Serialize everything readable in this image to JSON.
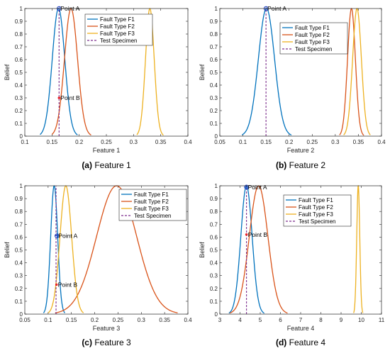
{
  "colors": {
    "F1": "#0072BD",
    "F2": "#D95319",
    "F3": "#EDB120",
    "test": "#7E2F8E",
    "pointA": "#1f3fbf",
    "pointB": "#e8262b"
  },
  "chart_data": [
    {
      "type": "line",
      "caption_letter": "(a)",
      "caption_text": " Feature 1",
      "xlabel": "Feature 1",
      "ylabel": "Belief",
      "xlim": [
        0.1,
        0.4
      ],
      "ylim": [
        0,
        1
      ],
      "xticks": [
        "0.1",
        "0.15",
        "0.2",
        "0.25",
        "0.3",
        "0.35",
        "0.4"
      ],
      "yticks": [
        "0",
        "0.1",
        "0.2",
        "0.3",
        "0.4",
        "0.5",
        "0.6",
        "0.7",
        "0.8",
        "0.9",
        "1"
      ],
      "legend": [
        "Fault Type F1",
        "Fault Type F2",
        "Fault Type F3",
        "Test Specimen"
      ],
      "legend_position": "top-center",
      "series": [
        {
          "name": "Fault Type F1",
          "color_key": "F1",
          "mean": 0.162,
          "sigma": 0.0115,
          "range": [
            0.128,
            0.197
          ]
        },
        {
          "name": "Fault Type F2",
          "color_key": "F2",
          "mean": 0.185,
          "sigma": 0.012,
          "range": [
            0.15,
            0.222
          ]
        },
        {
          "name": "Fault Type F3",
          "color_key": "F3",
          "mean": 0.33,
          "sigma": 0.008,
          "range": [
            0.306,
            0.355
          ]
        }
      ],
      "test_specimen": 0.163,
      "points": [
        {
          "label": "Point A",
          "x": 0.163,
          "y": 1.0,
          "color_key": "pointA"
        },
        {
          "label": "Point B",
          "x": 0.163,
          "y": 0.3,
          "color_key": "pointB"
        }
      ]
    },
    {
      "type": "line",
      "caption_letter": "(b)",
      "caption_text": " Feature 2",
      "xlabel": "Feature 2",
      "ylabel": "Belief",
      "xlim": [
        0.05,
        0.4
      ],
      "ylim": [
        0,
        1
      ],
      "xticks": [
        "0.05",
        "0.1",
        "0.15",
        "0.2",
        "0.25",
        "0.3",
        "0.35",
        "0.4"
      ],
      "yticks": [
        "0",
        "0.1",
        "0.2",
        "0.3",
        "0.4",
        "0.5",
        "0.6",
        "0.7",
        "0.8",
        "0.9",
        "1"
      ],
      "legend": [
        "Fault Type F1",
        "Fault Type F2",
        "Fault Type F3",
        "Test Specimen"
      ],
      "legend_position": "top-center",
      "series": [
        {
          "name": "Fault Type F1",
          "color_key": "F1",
          "mean": 0.151,
          "sigma": 0.0175,
          "range": [
            0.098,
            0.205
          ]
        },
        {
          "name": "Fault Type F2",
          "color_key": "F2",
          "mean": 0.335,
          "sigma": 0.0085,
          "range": [
            0.309,
            0.362
          ]
        },
        {
          "name": "Fault Type F3",
          "color_key": "F3",
          "mean": 0.347,
          "sigma": 0.0095,
          "range": [
            0.318,
            0.376
          ]
        }
      ],
      "test_specimen": 0.15,
      "points": [
        {
          "label": "Point A",
          "x": 0.15,
          "y": 1.0,
          "color_key": "pointA"
        }
      ]
    },
    {
      "type": "line",
      "caption_letter": "(c)",
      "caption_text": " Feature 3",
      "xlabel": "Feature 3",
      "ylabel": "Belief",
      "xlim": [
        0.05,
        0.4
      ],
      "ylim": [
        0,
        1
      ],
      "xticks": [
        "0.05",
        "0.1",
        "0.15",
        "0.2",
        "0.25",
        "0.3",
        "0.35",
        "0.4"
      ],
      "yticks": [
        "0",
        "0.1",
        "0.2",
        "0.3",
        "0.4",
        "0.5",
        "0.6",
        "0.7",
        "0.8",
        "0.9",
        "1"
      ],
      "legend": [
        "Fault Type F1",
        "Fault Type F2",
        "Fault Type F3",
        "Test Specimen"
      ],
      "legend_position": "top-right",
      "series": [
        {
          "name": "Fault Type F1",
          "color_key": "F1",
          "mean": 0.113,
          "sigma": 0.0075,
          "range": [
            0.09,
            0.136
          ]
        },
        {
          "name": "Fault Type F2",
          "color_key": "F2",
          "mean": 0.247,
          "sigma": 0.043,
          "range": [
            0.115,
            0.378
          ]
        },
        {
          "name": "Fault Type F3",
          "color_key": "F3",
          "mean": 0.138,
          "sigma": 0.0125,
          "range": [
            0.1,
            0.176
          ]
        }
      ],
      "test_specimen": 0.117,
      "points": [
        {
          "label": "Point A",
          "x": 0.119,
          "y": 0.61,
          "color_key": "pointA"
        },
        {
          "label": "Point B",
          "x": 0.118,
          "y": 0.23,
          "color_key": "pointB"
        }
      ]
    },
    {
      "type": "line",
      "caption_letter": "(d)",
      "caption_text": " Feature 4",
      "xlabel": "Feature 4",
      "ylabel": "Belief",
      "xlim": [
        3,
        11
      ],
      "ylim": [
        0,
        1
      ],
      "xticks": [
        "3",
        "4",
        "5",
        "6",
        "7",
        "8",
        "9",
        "10",
        "11"
      ],
      "yticks": [
        "0",
        "0.1",
        "0.2",
        "0.3",
        "0.4",
        "0.5",
        "0.6",
        "0.7",
        "0.8",
        "0.9",
        "1"
      ],
      "legend": [
        "Fault Type F1",
        "Fault Type F2",
        "Fault Type F3",
        "Test Specimen"
      ],
      "legend_position": "top-center",
      "series": [
        {
          "name": "Fault Type F1",
          "color_key": "F1",
          "mean": 4.32,
          "sigma": 0.28,
          "range": [
            3.45,
            5.2
          ]
        },
        {
          "name": "Fault Type F2",
          "color_key": "F2",
          "mean": 4.92,
          "sigma": 0.46,
          "range": [
            3.5,
            6.35
          ]
        },
        {
          "name": "Fault Type F3",
          "color_key": "F3",
          "mean": 9.85,
          "sigma": 0.075,
          "range": [
            9.62,
            10.08
          ]
        }
      ],
      "test_specimen": 4.32,
      "points": [
        {
          "label": "Point A",
          "x": 4.32,
          "y": 0.99,
          "color_key": "pointA"
        },
        {
          "label": "Point B",
          "x": 4.32,
          "y": 0.62,
          "color_key": "pointB"
        }
      ]
    }
  ]
}
